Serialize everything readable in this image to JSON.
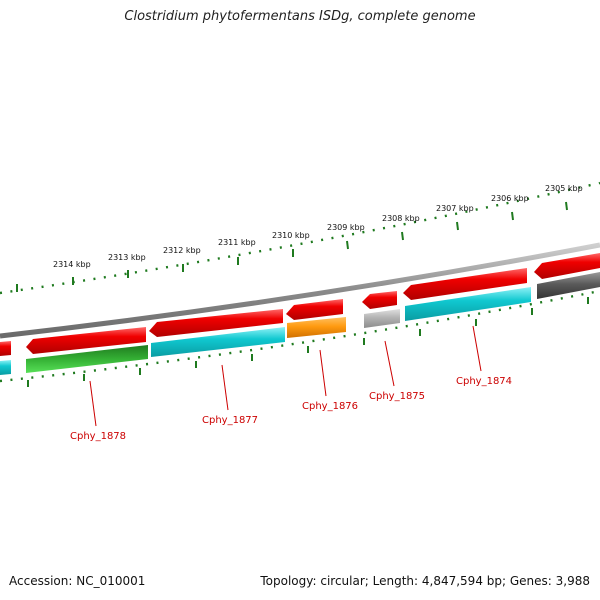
{
  "title": "Clostridium phytofermentans ISDg, complete genome",
  "footer": {
    "accession": "Accession: NC_010001",
    "summary": "Topology: circular; Length: 4,847,594 bp; Genes: 3,988"
  },
  "colors": {
    "forward_strand": "#e80000",
    "cds": "#10c8d0",
    "rna_green": "#2fae2f",
    "orange": "#ff9a10",
    "light_grey": "#b4b4b4",
    "dark_grey": "#5a5a5a",
    "tick": "#1f7a1f",
    "label": "#cc0000"
  },
  "kbp_labels": [
    "2305 kbp",
    "2306 kbp",
    "2307 kbp",
    "2308 kbp",
    "2309 kbp",
    "2310 kbp",
    "2311 kbp",
    "2312 kbp",
    "2313 kbp",
    "2314 kbp"
  ],
  "gene_labels": [
    "Cphy_1874",
    "Cphy_1875",
    "Cphy_1876",
    "Cphy_1877",
    "Cphy_1878"
  ]
}
